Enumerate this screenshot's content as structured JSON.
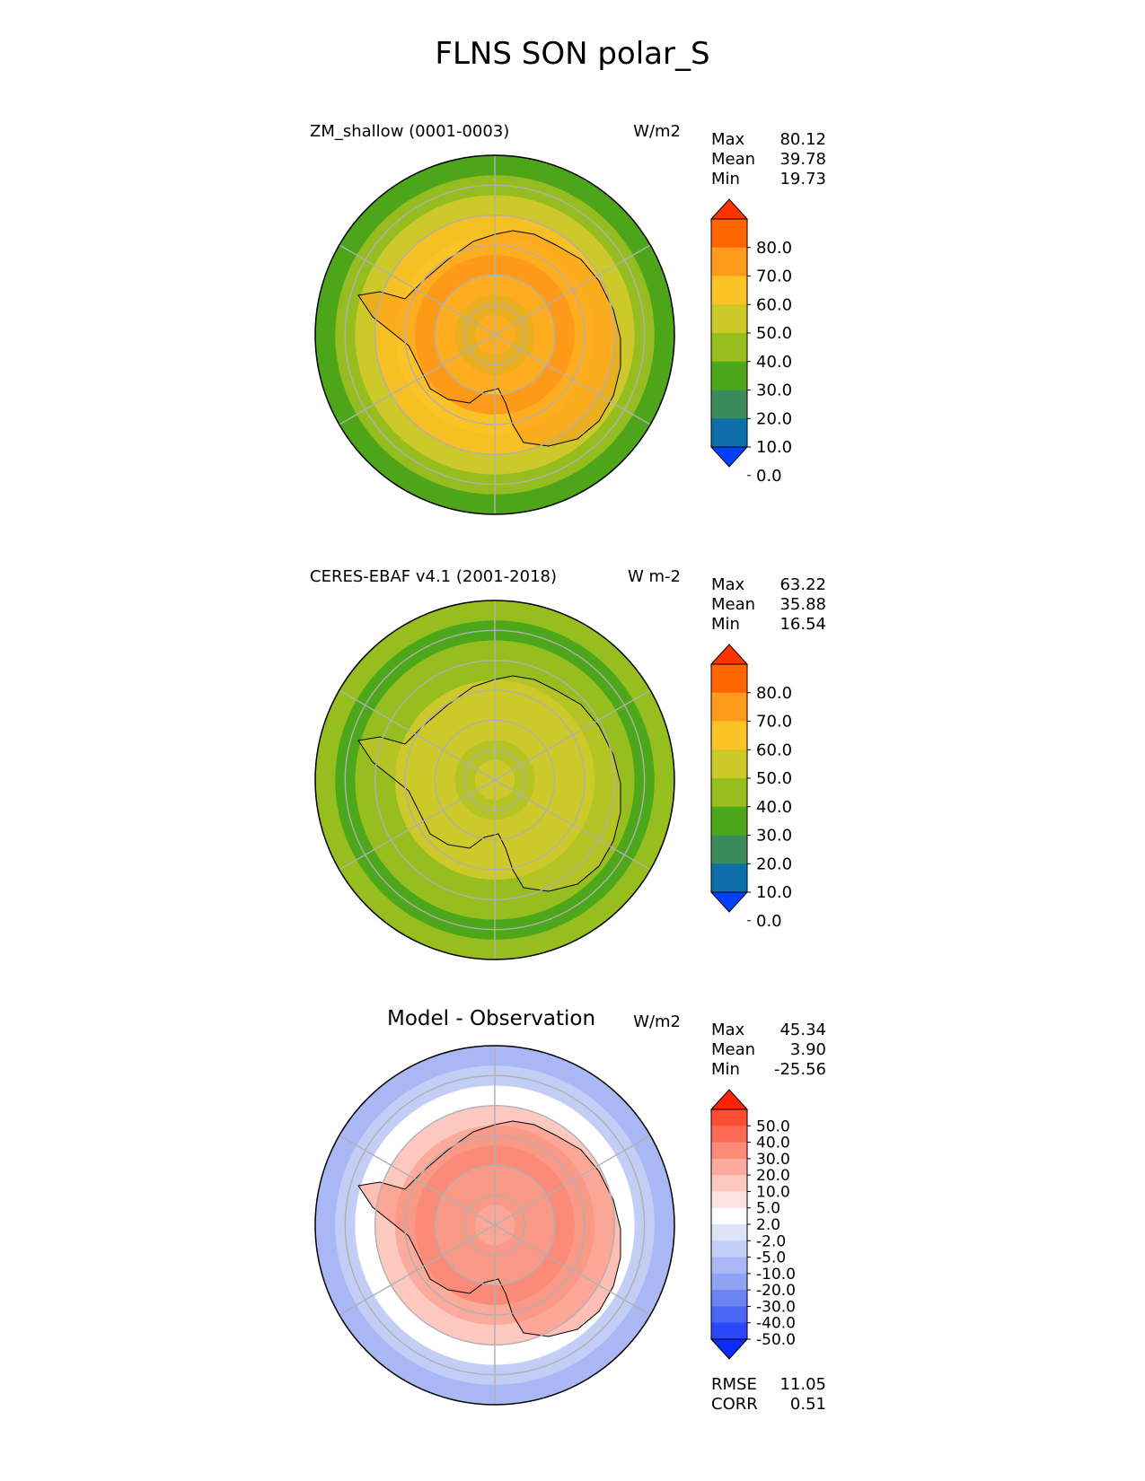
{
  "figure_title": "FLNS SON polar_S",
  "panels": [
    {
      "title": "ZM_shallow (0001-0003)",
      "units": "W/m2",
      "stats": [
        {
          "label": "Max",
          "value": "80.12"
        },
        {
          "label": "Mean",
          "value": "39.78"
        },
        {
          "label": "Min",
          "value": "19.73"
        }
      ],
      "colorbar": {
        "labels": [
          "80.0",
          "70.0",
          "60.0",
          "50.0",
          "40.0",
          "30.0",
          "20.0",
          "10.0",
          "0.0"
        ],
        "colors": [
          "#ff3300",
          "#ff6600",
          "#ff9a1a",
          "#fcc326",
          "#cdc92a",
          "#96be1e",
          "#4ca71a",
          "#3b8a5a",
          "#0f6fa8",
          "#0040ff"
        ]
      },
      "map": {
        "ring_colors": [
          "#4da61a",
          "#95bd1f",
          "#cdc92a",
          "#f5c023",
          "#fcc326",
          "#ff9a1a",
          "#fcc326",
          "#cdc92a",
          "#fcc326"
        ]
      }
    },
    {
      "title": "CERES-EBAF v4.1 (2001-2018)",
      "units": "W m-2",
      "stats": [
        {
          "label": "Max",
          "value": "63.22"
        },
        {
          "label": "Mean",
          "value": "35.88"
        },
        {
          "label": "Min",
          "value": "16.54"
        }
      ],
      "colorbar": {
        "labels": [
          "80.0",
          "70.0",
          "60.0",
          "50.0",
          "40.0",
          "30.0",
          "20.0",
          "10.0",
          "0.0"
        ],
        "colors": [
          "#ff3300",
          "#ff6600",
          "#ff9a1a",
          "#fcc326",
          "#cdc92a",
          "#96be1e",
          "#4ca71a",
          "#3b8a5a",
          "#0f6fa8",
          "#0040ff"
        ]
      },
      "map": {
        "ring_colors": [
          "#96be1e",
          "#4ca71a",
          "#96be1e",
          "#96be1e",
          "#cdc92a",
          "#cdc92a",
          "#cdc92a",
          "#96be1e",
          "#cdc92a"
        ]
      }
    },
    {
      "title": "Model - Observation",
      "units": "W/m2",
      "stats": [
        {
          "label": "Max",
          "value": "45.34"
        },
        {
          "label": "Mean",
          "value": "3.90"
        },
        {
          "label": "Min",
          "value": "-25.56"
        }
      ],
      "colorbar": {
        "labels": [
          "50.0",
          "40.0",
          "30.0",
          "20.0",
          "10.0",
          "5.0",
          "2.0",
          "-2.0",
          "-5.0",
          "-10.0",
          "-20.0",
          "-30.0",
          "-40.0",
          "-50.0"
        ],
        "colors": [
          "#ff2200",
          "#ff4d33",
          "#fa6a55",
          "#fb8a78",
          "#fbaa9c",
          "#fcc8bf",
          "#fde4de",
          "#ffffff",
          "#dde4fa",
          "#c3cef7",
          "#a9b8f5",
          "#8fa2f3",
          "#6c84f2",
          "#4a66f5",
          "#2a48f8",
          "#0a2cff"
        ]
      },
      "map": {
        "ring_colors": [
          "#a9b8f5",
          "#c3cef7",
          "#ffffff",
          "#fcc8bf",
          "#fbaa9c",
          "#fb8a78",
          "#fbaa9c",
          "#fbaa9c",
          "#fcc8bf"
        ]
      },
      "metrics": [
        {
          "label": "RMSE",
          "value": "11.05"
        },
        {
          "label": "CORR",
          "value": "0.51"
        }
      ]
    }
  ]
}
